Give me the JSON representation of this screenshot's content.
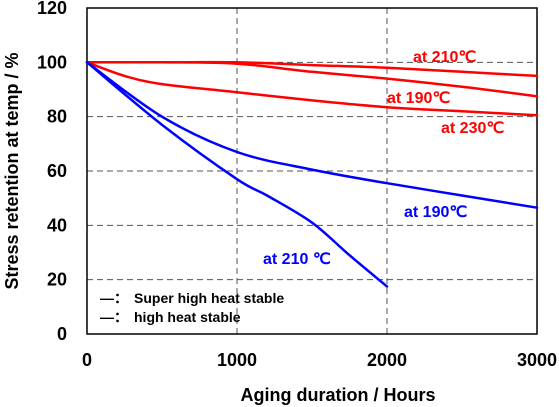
{
  "chart_data": {
    "type": "line",
    "xlabel": "Aging duration / Hours",
    "ylabel": "Stress retention at temp / %",
    "xlim": [
      0,
      3000
    ],
    "ylim": [
      0,
      120
    ],
    "x_ticks": [
      "0",
      "1000",
      "2000",
      "3000"
    ],
    "y_ticks": [
      "0",
      "20",
      "40",
      "60",
      "80",
      "100",
      "120"
    ],
    "grid": "dashed at x=1000,2000 and y=20,40,60,80,100",
    "legend": {
      "placement": "bottom-left",
      "entries": [
        {
          "marker": "—：",
          "label": "Super high heat stable",
          "color": "#ff0000"
        },
        {
          "marker": "—：",
          "label": "high heat stable",
          "color": "#0000ff"
        }
      ]
    },
    "series": [
      {
        "color": "#ff0000",
        "label": "at 210℃",
        "x": [
          0,
          500,
          1000,
          1500,
          2000,
          2500,
          3000
        ],
        "y": [
          100,
          100,
          100,
          99,
          98,
          96.5,
          95
        ]
      },
      {
        "color": "#ff0000",
        "label": "at 190℃",
        "x": [
          0,
          500,
          1000,
          1500,
          2000,
          2500,
          3000
        ],
        "y": [
          100,
          100,
          99.5,
          96.5,
          94,
          91,
          87.5
        ]
      },
      {
        "color": "#ff0000",
        "label": "at 230℃",
        "x": [
          0,
          250,
          500,
          1000,
          1500,
          2000,
          2500,
          3000
        ],
        "y": [
          100,
          95,
          92,
          89,
          86,
          83.5,
          82,
          80.5
        ]
      },
      {
        "color": "#0000ff",
        "label": "at 190℃",
        "x": [
          0,
          500,
          1000,
          1500,
          2000,
          2500,
          3000
        ],
        "y": [
          100,
          80,
          67,
          60.5,
          55.5,
          51,
          46.5
        ]
      },
      {
        "color": "#0000ff",
        "label": "at  210 ℃",
        "x": [
          0,
          500,
          1000,
          1200,
          1500,
          1750,
          2000
        ],
        "y": [
          100,
          77,
          57,
          51,
          41,
          29,
          17.5
        ]
      }
    ]
  }
}
